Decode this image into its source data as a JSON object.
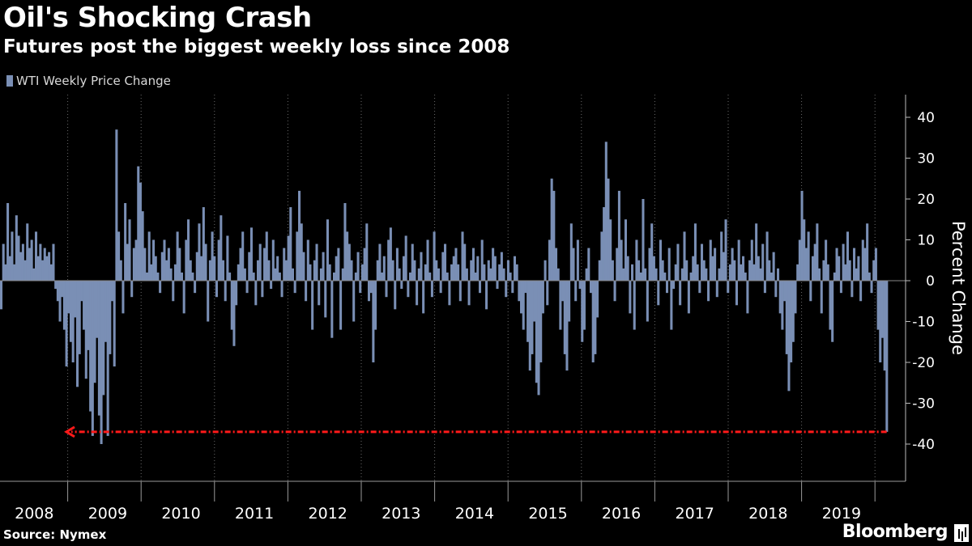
{
  "header": {
    "title": "Oil's Shocking Crash",
    "subtitle": "Futures post the biggest weekly loss since 2008"
  },
  "footer": {
    "source": "Source: Nymex",
    "brand": "Bloomberg"
  },
  "colors": {
    "bar": "#7a8fb5",
    "background": "#000000",
    "grid": "#6b6b6b",
    "annotation": "#ff1a1a",
    "text": "#ffffff"
  },
  "chart_data": {
    "type": "bar",
    "title": "Oil's Shocking Crash",
    "subtitle": "Futures post the biggest weekly loss since 2008",
    "ylabel": "Percent Change",
    "ylim": [
      -48,
      45
    ],
    "yticks": [
      40,
      30,
      20,
      10,
      0,
      -10,
      -20,
      -30,
      -40
    ],
    "y_axis_position": "right",
    "grid": "vertical dotted year separators",
    "legend": "top-left",
    "years": [
      "2008",
      "2009",
      "2010",
      "2011",
      "2012",
      "2013",
      "2014",
      "2015",
      "2016",
      "2017",
      "2018",
      "2019"
    ],
    "series": [
      {
        "name": "WTI Weekly Price Change",
        "note": "weekly values, first week of 2008 through March 2020",
        "values": [
          -7,
          9,
          4,
          19,
          6,
          12,
          4,
          16,
          11,
          7,
          9,
          5,
          14,
          8,
          10,
          3,
          12,
          6,
          9,
          5,
          8,
          6,
          7,
          4,
          9,
          -2,
          -5,
          -10,
          -4,
          -12,
          -21,
          -8,
          -15,
          -20,
          -9,
          -26,
          -18,
          -5,
          -12,
          -24,
          -17,
          -32,
          -38,
          -25,
          -14,
          -33,
          -40,
          -28,
          -15,
          -38,
          -18,
          -5,
          -21,
          37,
          12,
          5,
          -8,
          19,
          9,
          15,
          -4,
          8,
          10,
          28,
          24,
          17,
          8,
          2,
          12,
          4,
          10,
          6,
          2,
          -3,
          7,
          10,
          5,
          8,
          3,
          -5,
          4,
          12,
          8,
          2,
          -8,
          10,
          15,
          5,
          2,
          -3,
          7,
          14,
          6,
          18,
          9,
          -10,
          5,
          12,
          6,
          -4,
          10,
          16,
          5,
          -5,
          11,
          2,
          -12,
          -16,
          -6,
          4,
          8,
          12,
          3,
          -3,
          7,
          13,
          2,
          -6,
          5,
          9,
          -4,
          8,
          12,
          5,
          -2,
          10,
          3,
          6,
          2,
          -4,
          8,
          5,
          11,
          18,
          3,
          -3,
          12,
          22,
          14,
          7,
          -5,
          10,
          4,
          -12,
          5,
          9,
          -6,
          3,
          7,
          -9,
          15,
          4,
          -14,
          2,
          6,
          8,
          -12,
          3,
          19,
          12,
          9,
          5,
          -10,
          2,
          7,
          -3,
          4,
          8,
          14,
          -5,
          -3,
          -20,
          -12,
          5,
          9,
          2,
          6,
          -4,
          10,
          13,
          5,
          -7,
          8,
          3,
          -2,
          6,
          11,
          -4,
          2,
          9,
          5,
          -6,
          3,
          7,
          -8,
          4,
          10,
          2,
          -4,
          12,
          5,
          3,
          -3,
          7,
          9,
          2,
          -6,
          4,
          6,
          8,
          4,
          -5,
          12,
          9,
          3,
          -6,
          5,
          8,
          2,
          6,
          -3,
          10,
          4,
          -7,
          5,
          3,
          8,
          6,
          -2,
          4,
          7,
          3,
          -4,
          5,
          2,
          -3,
          6,
          4,
          -5,
          -8,
          -12,
          -3,
          -15,
          -22,
          -18,
          -10,
          -25,
          -28,
          -20,
          -8,
          5,
          -6,
          10,
          25,
          22,
          8,
          3,
          -12,
          -5,
          -18,
          -22,
          -10,
          14,
          8,
          -5,
          10,
          -2,
          -15,
          -12,
          3,
          8,
          -3,
          -20,
          -18,
          -9,
          5,
          12,
          18,
          34,
          25,
          15,
          5,
          -5,
          8,
          22,
          10,
          3,
          15,
          6,
          -8,
          4,
          -12,
          10,
          5,
          2,
          20,
          3,
          -10,
          8,
          14,
          6,
          3,
          -6,
          10,
          5,
          2,
          -3,
          8,
          -12,
          -2,
          4,
          9,
          -6,
          3,
          12,
          5,
          -8,
          2,
          6,
          14,
          4,
          -3,
          9,
          5,
          3,
          -5,
          10,
          6,
          8,
          -4,
          3,
          12,
          7,
          15,
          -3,
          4,
          8,
          5,
          -6,
          10,
          4,
          6,
          2,
          -8,
          5,
          10,
          4,
          14,
          6,
          3,
          9,
          -3,
          12,
          5,
          2,
          7,
          -4,
          3,
          -8,
          -12,
          -5,
          -18,
          -27,
          -20,
          -15,
          -8,
          4,
          10,
          22,
          15,
          8,
          12,
          -5,
          6,
          9,
          14,
          3,
          -8,
          5,
          10,
          4,
          -12,
          -15,
          2,
          8,
          6,
          -3,
          9,
          4,
          12,
          5,
          -4,
          8,
          3,
          6,
          -5,
          10,
          8,
          14,
          2,
          -3,
          5,
          8,
          -12,
          -20,
          -14,
          -22,
          -37
        ]
      }
    ],
    "annotations": [
      {
        "type": "arrow",
        "description": "dashed arrow from the latest weekly loss back to the 2008 low",
        "value": -37
      }
    ]
  }
}
